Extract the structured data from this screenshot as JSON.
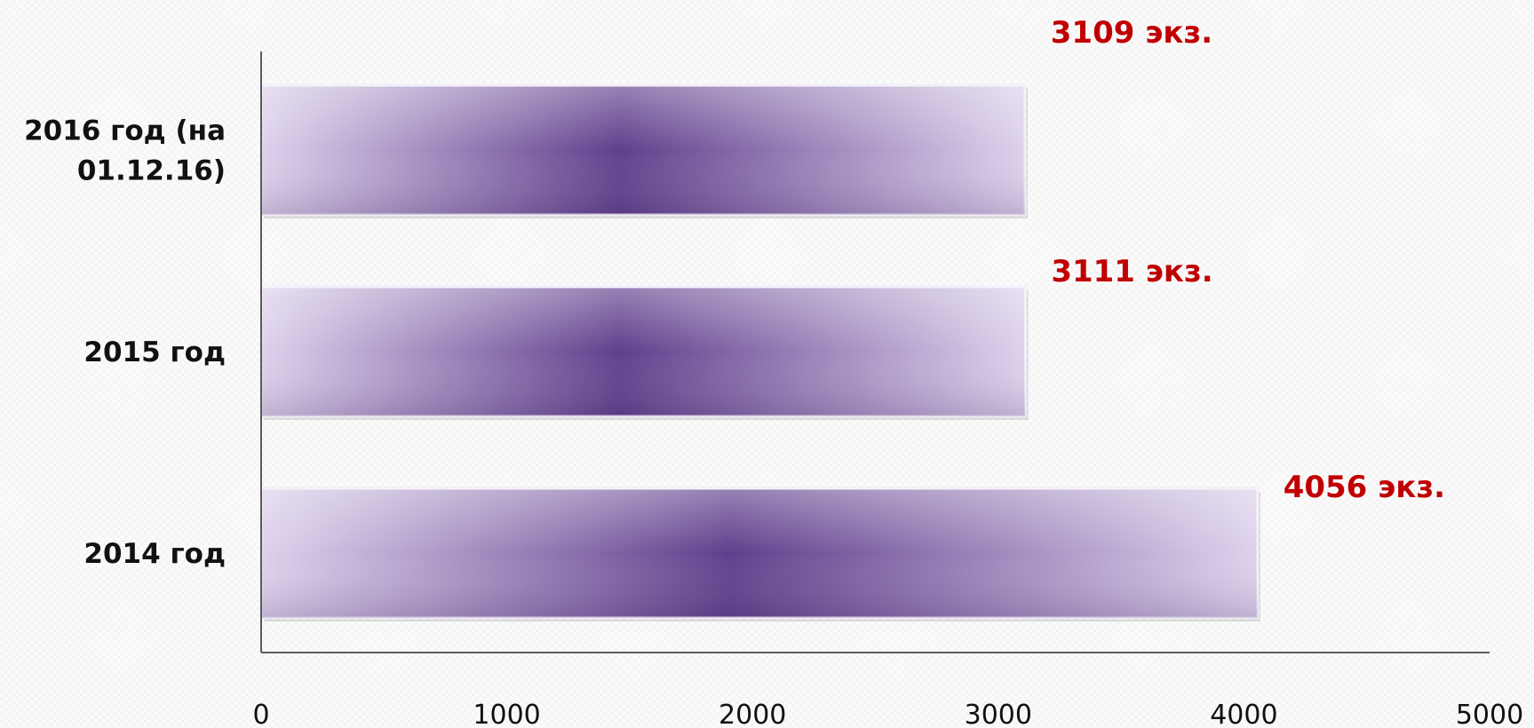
{
  "chart_data": {
    "type": "bar",
    "orientation": "horizontal",
    "categories": [
      "2016 год (на 01.12.16)",
      "2015 год",
      "2014 год"
    ],
    "category_lines": [
      [
        "2016 год (на",
        "01.12.16)"
      ],
      [
        "2015 год"
      ],
      [
        "2014 год"
      ]
    ],
    "values": [
      3109,
      3111,
      4056
    ],
    "data_labels": [
      "3109 экз.",
      "3111 экз.",
      "4056 экз."
    ],
    "xlim": [
      0,
      5000
    ],
    "x_ticks": [
      "0",
      "1000",
      "2000",
      "3000",
      "4000",
      "5000"
    ],
    "title": "",
    "xlabel": "",
    "ylabel": "",
    "grid": false,
    "legend": "none",
    "colors": {
      "bar_dark": "#5f3f8c",
      "bar_light": "#ddd1ec",
      "axis": "#5a5a5a",
      "data_label": "#c00000"
    }
  }
}
